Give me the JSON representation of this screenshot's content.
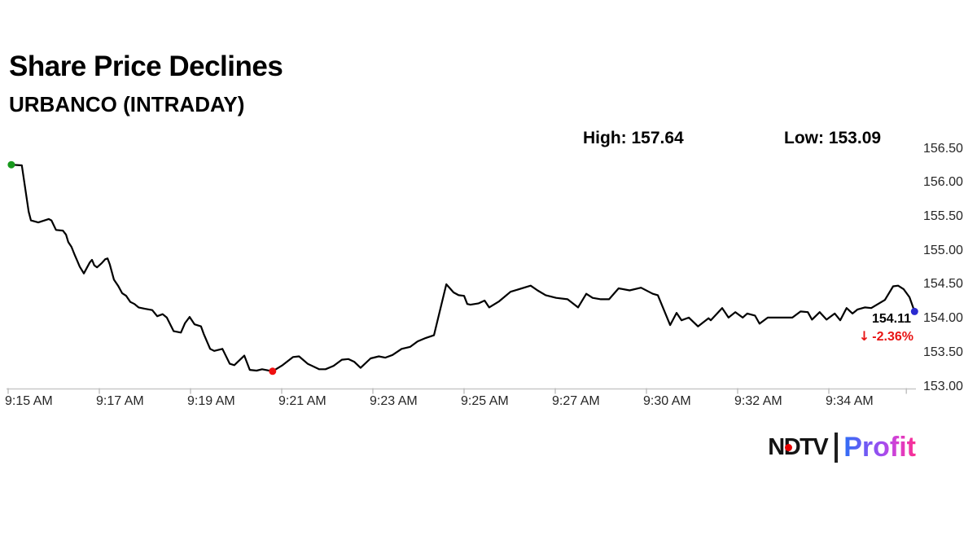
{
  "header": {
    "title": "Share Price Declines",
    "subtitle": "URBANCO (INTRADAY)"
  },
  "stats": {
    "high_label": "High: 157.64",
    "low_label": "Low: 153.09"
  },
  "annotations": {
    "last_price": "154.11",
    "arrow": "↓",
    "change": "-2.36%",
    "change_color": "#e81414"
  },
  "logo": {
    "ndtv_n": "N",
    "ndtv_d": "D",
    "ndtv_tv": "TV",
    "profit": "Profit",
    "red_dot_color": "#e60000",
    "bar_color": "#1f1f1f"
  },
  "chart_data": {
    "type": "line",
    "title": "URBANCO intraday share price",
    "symbol": "URBANCO",
    "session_high": 157.64,
    "session_low": 153.09,
    "last_price": 154.11,
    "change_pct": -2.36,
    "x_unit": "minutes after 9:15 AM",
    "xlim": [
      0,
      20.1
    ],
    "ylim": [
      153.0,
      156.5
    ],
    "grid": false,
    "legend": "none",
    "line_color": "#000000",
    "axis_color": "#c8c8c8",
    "tick_color": "#b9b9b9",
    "x_ticks": [
      {
        "t": 0,
        "label": "9:15 AM"
      },
      {
        "t": 2,
        "label": "9:17 AM"
      },
      {
        "t": 4,
        "label": "9:19 AM"
      },
      {
        "t": 6,
        "label": "9:21 AM"
      },
      {
        "t": 8,
        "label": "9:23 AM"
      },
      {
        "t": 10,
        "label": "9:25 AM"
      },
      {
        "t": 12,
        "label": "9:27 AM"
      },
      {
        "t": 14,
        "label": "9:30 AM"
      },
      {
        "t": 16,
        "label": "9:32 AM"
      },
      {
        "t": 18,
        "label": "9:34 AM"
      }
    ],
    "end_tick_t": 19.7,
    "y_ticks": [
      {
        "v": 156.5,
        "label": "156.50"
      },
      {
        "v": 156.0,
        "label": "156.00"
      },
      {
        "v": 155.5,
        "label": "155.50"
      },
      {
        "v": 155.0,
        "label": "155.00"
      },
      {
        "v": 154.5,
        "label": "154.50"
      },
      {
        "v": 154.0,
        "label": "154.00"
      },
      {
        "v": 153.5,
        "label": "153.50"
      },
      {
        "v": 153.0,
        "label": "153.00"
      }
    ],
    "markers": {
      "start_color": "#17991d",
      "low_color": "#ef1010",
      "low_t": 5.8,
      "low_p": 153.23,
      "end_color": "#2a2ad0"
    },
    "points": [
      [
        0.07,
        156.27
      ],
      [
        0.3,
        156.26
      ],
      [
        0.45,
        155.58
      ],
      [
        0.5,
        155.45
      ],
      [
        0.66,
        155.42
      ],
      [
        0.8,
        155.45
      ],
      [
        0.89,
        155.47
      ],
      [
        0.95,
        155.45
      ],
      [
        1.05,
        155.31
      ],
      [
        1.2,
        155.3
      ],
      [
        1.27,
        155.24
      ],
      [
        1.32,
        155.13
      ],
      [
        1.39,
        155.06
      ],
      [
        1.46,
        154.94
      ],
      [
        1.52,
        154.85
      ],
      [
        1.57,
        154.77
      ],
      [
        1.66,
        154.67
      ],
      [
        1.79,
        154.83
      ],
      [
        1.84,
        154.87
      ],
      [
        1.89,
        154.79
      ],
      [
        1.95,
        154.76
      ],
      [
        2.05,
        154.82
      ],
      [
        2.13,
        154.88
      ],
      [
        2.18,
        154.89
      ],
      [
        2.23,
        154.8
      ],
      [
        2.32,
        154.58
      ],
      [
        2.41,
        154.49
      ],
      [
        2.5,
        154.38
      ],
      [
        2.59,
        154.34
      ],
      [
        2.68,
        154.25
      ],
      [
        2.77,
        154.22
      ],
      [
        2.86,
        154.17
      ],
      [
        3.0,
        154.15
      ],
      [
        3.16,
        154.13
      ],
      [
        3.27,
        154.04
      ],
      [
        3.39,
        154.07
      ],
      [
        3.48,
        154.02
      ],
      [
        3.63,
        153.82
      ],
      [
        3.79,
        153.8
      ],
      [
        3.88,
        153.94
      ],
      [
        3.98,
        154.03
      ],
      [
        4.09,
        153.92
      ],
      [
        4.23,
        153.89
      ],
      [
        4.29,
        153.78
      ],
      [
        4.43,
        153.56
      ],
      [
        4.52,
        153.53
      ],
      [
        4.7,
        153.56
      ],
      [
        4.86,
        153.34
      ],
      [
        4.96,
        153.32
      ],
      [
        5.18,
        153.46
      ],
      [
        5.3,
        153.25
      ],
      [
        5.45,
        153.24
      ],
      [
        5.57,
        153.26
      ],
      [
        5.8,
        153.23
      ],
      [
        6.02,
        153.32
      ],
      [
        6.25,
        153.44
      ],
      [
        6.38,
        153.45
      ],
      [
        6.57,
        153.34
      ],
      [
        6.82,
        153.26
      ],
      [
        6.96,
        153.26
      ],
      [
        7.14,
        153.31
      ],
      [
        7.32,
        153.4
      ],
      [
        7.46,
        153.41
      ],
      [
        7.59,
        153.37
      ],
      [
        7.73,
        153.28
      ],
      [
        7.95,
        153.42
      ],
      [
        8.13,
        153.45
      ],
      [
        8.27,
        153.43
      ],
      [
        8.43,
        153.47
      ],
      [
        8.63,
        153.56
      ],
      [
        8.82,
        153.59
      ],
      [
        8.98,
        153.67
      ],
      [
        9.16,
        153.72
      ],
      [
        9.34,
        153.76
      ],
      [
        9.61,
        154.51
      ],
      [
        9.77,
        154.39
      ],
      [
        9.88,
        154.35
      ],
      [
        10.0,
        154.34
      ],
      [
        10.07,
        154.22
      ],
      [
        10.14,
        154.21
      ],
      [
        10.32,
        154.23
      ],
      [
        10.45,
        154.27
      ],
      [
        10.55,
        154.17
      ],
      [
        10.77,
        154.26
      ],
      [
        11.02,
        154.4
      ],
      [
        11.46,
        154.49
      ],
      [
        11.61,
        154.42
      ],
      [
        11.79,
        154.35
      ],
      [
        12.02,
        154.31
      ],
      [
        12.27,
        154.29
      ],
      [
        12.5,
        154.17
      ],
      [
        12.68,
        154.37
      ],
      [
        12.82,
        154.31
      ],
      [
        13.0,
        154.29
      ],
      [
        13.18,
        154.29
      ],
      [
        13.39,
        154.45
      ],
      [
        13.63,
        154.42
      ],
      [
        13.88,
        154.46
      ],
      [
        14.14,
        154.37
      ],
      [
        14.25,
        154.35
      ],
      [
        14.52,
        153.91
      ],
      [
        14.66,
        154.09
      ],
      [
        14.77,
        153.98
      ],
      [
        14.93,
        154.02
      ],
      [
        15.13,
        153.89
      ],
      [
        15.36,
        154.01
      ],
      [
        15.41,
        153.98
      ],
      [
        15.66,
        154.16
      ],
      [
        15.8,
        154.02
      ],
      [
        15.95,
        154.1
      ],
      [
        16.11,
        154.02
      ],
      [
        16.21,
        154.08
      ],
      [
        16.38,
        154.05
      ],
      [
        16.48,
        153.93
      ],
      [
        16.66,
        154.02
      ],
      [
        17.2,
        154.02
      ],
      [
        17.38,
        154.11
      ],
      [
        17.54,
        154.1
      ],
      [
        17.63,
        153.99
      ],
      [
        17.8,
        154.1
      ],
      [
        17.95,
        153.99
      ],
      [
        18.13,
        154.08
      ],
      [
        18.25,
        153.98
      ],
      [
        18.39,
        154.16
      ],
      [
        18.52,
        154.08
      ],
      [
        18.63,
        154.14
      ],
      [
        18.79,
        154.17
      ],
      [
        18.93,
        154.16
      ],
      [
        19.23,
        154.28
      ],
      [
        19.41,
        154.48
      ],
      [
        19.52,
        154.49
      ],
      [
        19.64,
        154.44
      ],
      [
        19.77,
        154.32
      ],
      [
        19.88,
        154.11
      ]
    ]
  }
}
